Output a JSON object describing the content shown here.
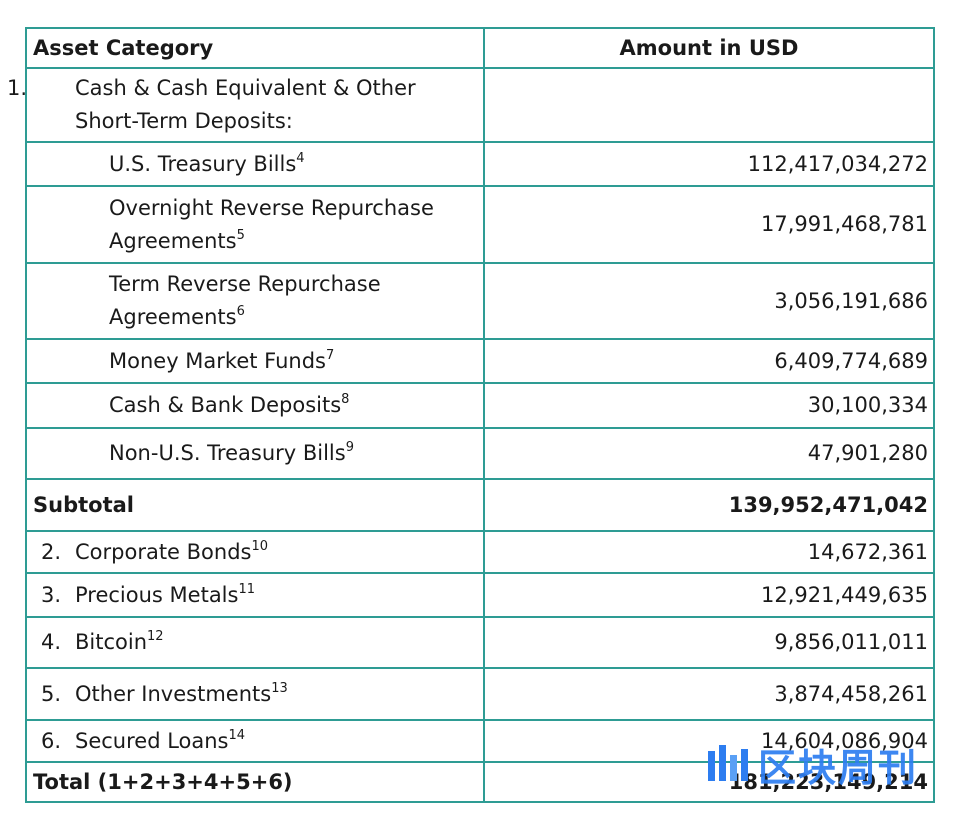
{
  "header": {
    "col1": "Asset Category",
    "col2": "Amount in USD"
  },
  "rows": [
    {
      "num": "1.",
      "label": "Cash & Cash Equivalent & Other Short-Term Deposits:",
      "sup": "",
      "amount": ""
    },
    {
      "label": "U.S. Treasury Bills",
      "sup": "4",
      "amount": "112,417,034,272"
    },
    {
      "label": "Overnight Reverse Repurchase Agreements",
      "sup": "5",
      "amount": "17,991,468,781"
    },
    {
      "label": "Term Reverse Repurchase Agreements",
      "sup": "6",
      "amount": "3,056,191,686"
    },
    {
      "label": "Money Market Funds",
      "sup": "7",
      "amount": "6,409,774,689"
    },
    {
      "label": "Cash & Bank Deposits",
      "sup": "8",
      "amount": "30,100,334"
    },
    {
      "label": "Non-U.S. Treasury Bills",
      "sup": "9",
      "amount": "47,901,280"
    },
    {
      "label": "Subtotal",
      "amount": "139,952,471,042"
    },
    {
      "num": "2.",
      "label": "Corporate Bonds",
      "sup": "10",
      "amount": "14,672,361"
    },
    {
      "num": "3.",
      "label": "Precious Metals",
      "sup": "11",
      "amount": "12,921,449,635"
    },
    {
      "num": "4.",
      "label": "Bitcoin",
      "sup": "12",
      "amount": "9,856,011,011"
    },
    {
      "num": "5.",
      "label": "Other Investments",
      "sup": "13",
      "amount": "3,874,458,261"
    },
    {
      "num": "6.",
      "label": "Secured Loans",
      "sup": "14",
      "amount": "14,604,086,904"
    },
    {
      "label": "Total (1+2+3+4+5+6)",
      "amount": "181,223,149,214"
    }
  ],
  "watermark": {
    "text": "区块周刊",
    "icon": "bar-chart-logo-icon",
    "color": "#2d7df0"
  },
  "colors": {
    "border": "#2e9c94",
    "text": "#1a1a1a"
  }
}
